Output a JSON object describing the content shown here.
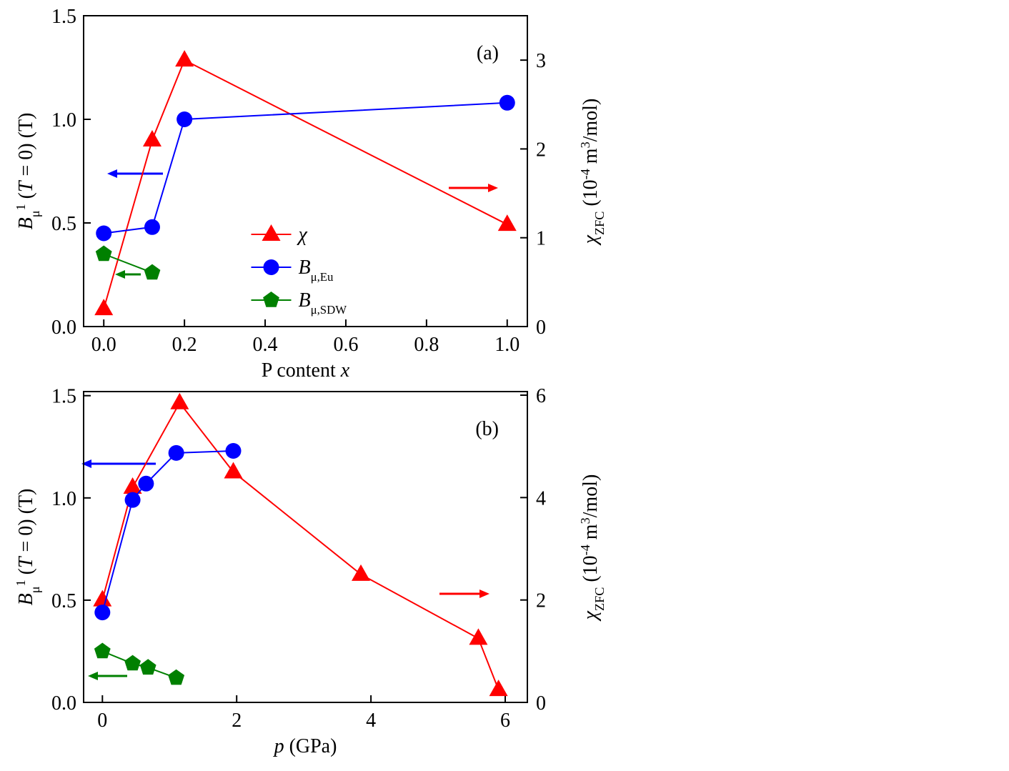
{
  "chart_data": [
    {
      "type": "line",
      "annotation": "(a)",
      "xlabel": [
        {
          "text": "P content "
        },
        {
          "text": "x",
          "italic": true
        }
      ],
      "ylabel": [
        {
          "text": "B",
          "italic": true
        },
        {
          "text": "μ",
          "sub": true
        },
        {
          "text": "1",
          "sup": true
        },
        {
          "text": " ("
        },
        {
          "text": "T",
          "italic": true
        },
        {
          "text": " = 0) (T)"
        }
      ],
      "y2label": [
        {
          "text": "χ",
          "italic": true
        },
        {
          "text": "ZFC",
          "sub": true
        },
        {
          "text": " (10"
        },
        {
          "text": "-4",
          "sup": true
        },
        {
          "text": " m"
        },
        {
          "text": "3",
          "sup": true
        },
        {
          "text": "/mol)"
        }
      ],
      "xlim": [
        -0.05,
        1.05
      ],
      "xticks": [
        {
          "value": 0,
          "label": "0.0"
        },
        0.2,
        0.4,
        0.6,
        0.8,
        {
          "value": 1,
          "label": "1.0"
        }
      ],
      "ylim": [
        0,
        1.5
      ],
      "yticks": [
        {
          "value": 0,
          "label": "0.0"
        },
        0.5,
        {
          "value": 1,
          "label": "1.0"
        },
        1.5
      ],
      "y2lim": [
        0,
        3.5
      ],
      "y2ticks": [
        0,
        1,
        2,
        3
      ],
      "legend": "center",
      "series": [
        {
          "name": "χ",
          "marker": "triangle",
          "color": "#ff0000",
          "axis": "y2",
          "x": [
            0,
            0.12,
            0.2,
            1.0
          ],
          "values": [
            0.2,
            2.1,
            3.0,
            1.15
          ]
        },
        {
          "name": "B",
          "name_sub": "μ,Eu",
          "marker": "circle",
          "color": "#0000ff",
          "x": [
            0,
            0.12,
            0.2,
            1.0
          ],
          "values": [
            0.45,
            0.48,
            1.0,
            1.08
          ]
        },
        {
          "name": "B",
          "name_sub": "μ,SDW",
          "marker": "pentagon",
          "color": "#008000",
          "x": [
            0,
            0.12
          ],
          "values": [
            0.35,
            0.26
          ]
        }
      ]
    },
    {
      "type": "line",
      "annotation": "(b)",
      "xlabel": [
        {
          "text": "p",
          "italic": true
        },
        {
          "text": " (GPa)"
        }
      ],
      "ylabel": [
        {
          "text": "B",
          "italic": true
        },
        {
          "text": "μ",
          "sub": true
        },
        {
          "text": "1",
          "sup": true
        },
        {
          "text": " ("
        },
        {
          "text": "T",
          "italic": true
        },
        {
          "text": " = 0) (T)"
        }
      ],
      "y2label": [
        {
          "text": "χ",
          "italic": true
        },
        {
          "text": "ZFC",
          "sub": true
        },
        {
          "text": " (10"
        },
        {
          "text": "-4",
          "sup": true
        },
        {
          "text": " m"
        },
        {
          "text": "3",
          "sup": true
        },
        {
          "text": "/mol)"
        }
      ],
      "xlim": [
        -0.28,
        6.33
      ],
      "xticks": [
        0,
        2,
        4,
        6
      ],
      "ylim": [
        0,
        1.52
      ],
      "yticks": [
        {
          "value": 0,
          "label": "0.0"
        },
        0.5,
        {
          "value": 1,
          "label": "1.0"
        },
        1.5
      ],
      "y2lim": [
        0,
        6.07
      ],
      "y2ticks": [
        0,
        2,
        4,
        6
      ],
      "series": [
        {
          "marker": "triangle",
          "color": "#ff0000",
          "axis": "y2",
          "x": [
            0,
            0.45,
            1.15,
            1.95,
            3.85,
            5.6,
            5.9
          ],
          "values": [
            2.0,
            4.2,
            5.85,
            4.5,
            2.5,
            1.25,
            0.25
          ]
        },
        {
          "marker": "circle",
          "color": "#0000ff",
          "x": [
            0,
            0.45,
            0.65,
            1.1,
            1.95
          ],
          "values": [
            0.44,
            0.99,
            1.07,
            1.22,
            1.23
          ]
        },
        {
          "marker": "pentagon",
          "color": "#008000",
          "x": [
            0,
            0.45,
            0.68,
            1.1
          ],
          "values": [
            0.25,
            0.19,
            0.17,
            0.12
          ]
        }
      ]
    }
  ]
}
